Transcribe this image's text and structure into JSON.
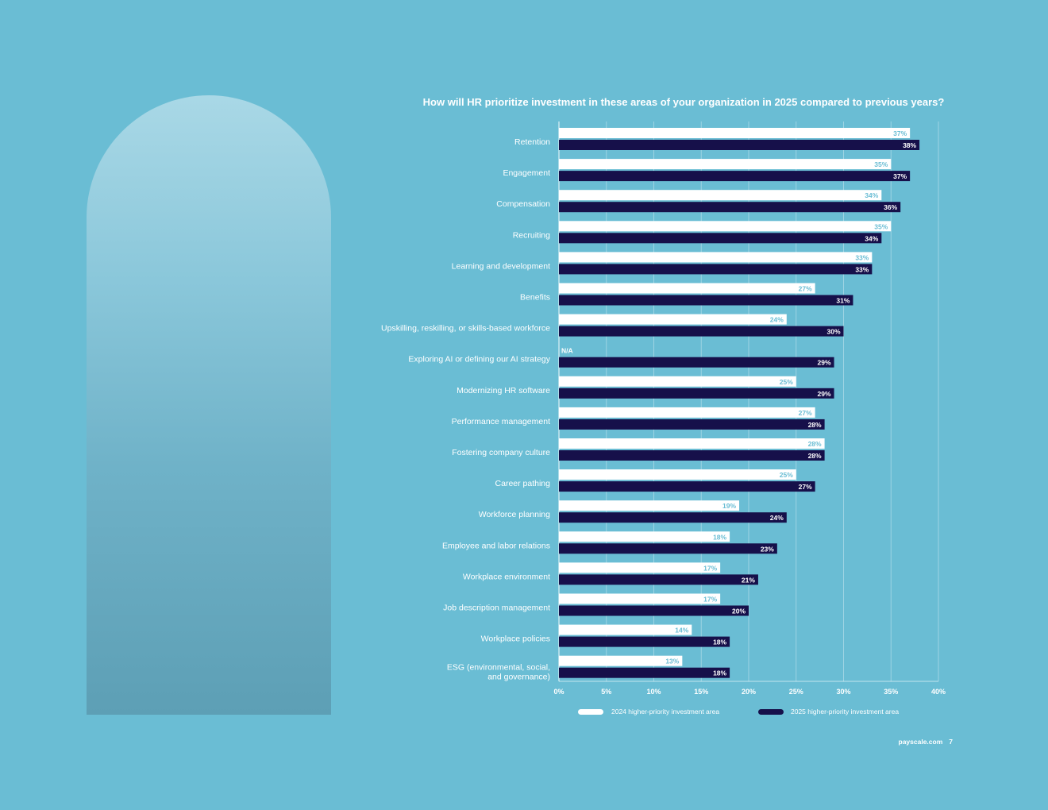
{
  "footer": {
    "site": "payscale.com",
    "page": "7"
  },
  "colors": {
    "background": "#6abdd4",
    "bar_2024": "#ffffff",
    "bar_2025": "#16104a"
  },
  "chart_data": {
    "type": "bar",
    "orientation": "horizontal",
    "title": "How will HR prioritize investment in these areas of your organization in 2025 compared to previous years?",
    "categories": [
      "Retention",
      "Engagement",
      "Compensation",
      "Recruiting",
      "Learning and development",
      "Benefits",
      "Upskilling, reskilling, or skills-based workforce",
      "Exploring AI or defining our AI strategy",
      "Modernizing HR software",
      "Performance management",
      "Fostering company culture",
      "Career pathing",
      "Workforce planning",
      "Employee and labor relations",
      "Workplace environment",
      "Job description management",
      "Workplace policies",
      "ESG (environmental, social, and governance)"
    ],
    "series": [
      {
        "name": "2024 higher-priority investment area",
        "values": [
          37,
          35,
          34,
          35,
          33,
          27,
          24,
          null,
          25,
          27,
          28,
          25,
          19,
          18,
          17,
          17,
          14,
          13
        ],
        "labels": [
          "37%",
          "35%",
          "34%",
          "35%",
          "33%",
          "27%",
          "24%",
          "N/A",
          "25%",
          "27%",
          "28%",
          "25%",
          "19%",
          "18%",
          "17%",
          "17%",
          "14%",
          "13%"
        ]
      },
      {
        "name": "2025 higher-priority investment area",
        "values": [
          38,
          37,
          36,
          34,
          33,
          31,
          30,
          29,
          29,
          28,
          28,
          27,
          24,
          23,
          21,
          20,
          18,
          18
        ],
        "labels": [
          "38%",
          "37%",
          "36%",
          "34%",
          "33%",
          "31%",
          "30%",
          "29%",
          "29%",
          "28%",
          "28%",
          "27%",
          "24%",
          "23%",
          "21%",
          "20%",
          "18%",
          "18%"
        ]
      }
    ],
    "xlim": [
      0,
      40
    ],
    "xticks": [
      0,
      5,
      10,
      15,
      20,
      25,
      30,
      35,
      40
    ],
    "xtick_labels": [
      "0%",
      "5%",
      "10%",
      "15%",
      "20%",
      "25%",
      "30%",
      "35%",
      "40%"
    ],
    "grid": true,
    "legend": "bottom"
  }
}
